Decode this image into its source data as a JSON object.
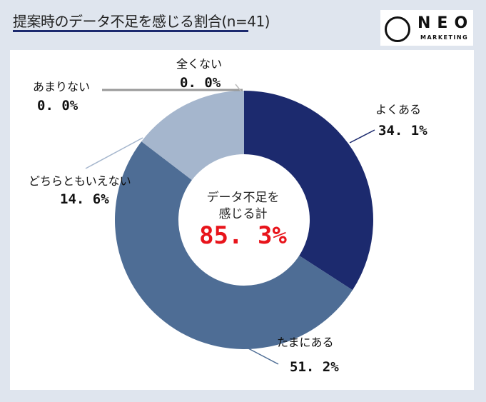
{
  "header": {
    "title": "提案時のデータ不足を感じる割合(n=41)"
  },
  "logo": {
    "name": "NEO",
    "sub": "MARKETING"
  },
  "chart_data": {
    "type": "pie",
    "title": "提案時のデータ不足を感じる割合(n=41)",
    "donut": true,
    "categories": [
      "よくある",
      "たまにある",
      "どちらともいえない",
      "あまりない",
      "全くない"
    ],
    "values": [
      34.1,
      51.2,
      14.6,
      0.0,
      0.0
    ],
    "value_labels": [
      "34. 1%",
      "51. 2%",
      "14. 6%",
      "0. 0%",
      "0. 0%"
    ],
    "colors": [
      "#1c2a6e",
      "#4e6d95",
      "#a5b6cd",
      "#8c8c8c",
      "#8c8c8c"
    ],
    "center_label": [
      "データ不足を",
      "感じる計"
    ],
    "center_value": "85. 3%",
    "center_value_color": "#e8141b"
  }
}
